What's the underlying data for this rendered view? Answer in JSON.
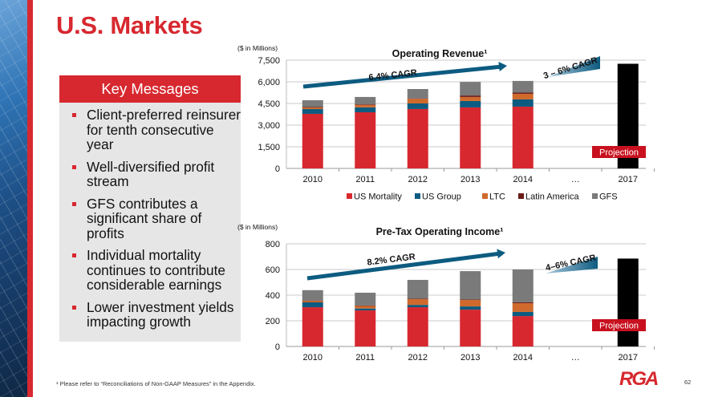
{
  "slide": {
    "title": "U.S. Markets",
    "key_messages": {
      "header": "Key Messages",
      "items": [
        "Client-preferred reinsurer for tenth consecutive year",
        "Well-diversified profit stream",
        "GFS contributes a significant share of profits",
        "Individual mortality continues to contribute considerable earnings",
        "Lower investment yields impacting growth"
      ]
    },
    "footnote": "¹ Please refer to “Reconciliations of Non-GAAP Measures” in the Appendix.",
    "logo": "RGA",
    "page_number": "62"
  },
  "colors": {
    "brand_red": "#d7282f",
    "US Mortality": "#d7282f",
    "US Group": "#0d5b80",
    "LTC": "#cf6a2c",
    "Latin America": "#6a1c18",
    "GFS": "#7a7a7a",
    "projection": "#000000",
    "cagr_arrow": "#0d5b80"
  },
  "chart_data": [
    {
      "type": "bar",
      "stacked": true,
      "title": "Operating Revenue¹",
      "units_label": "($ in Millions)",
      "xlabel": "",
      "ylabel": "",
      "categories": [
        "2010",
        "2011",
        "2012",
        "2013",
        "2014",
        "…",
        "2017"
      ],
      "ylim": [
        0,
        7500
      ],
      "yticks": [
        0,
        1500,
        3000,
        4500,
        6000,
        7500
      ],
      "ytick_labels": [
        "0",
        "1,500",
        "3,000",
        "4,500",
        "6,000",
        "7,500"
      ],
      "grid": true,
      "legend": "bottom",
      "series": [
        {
          "name": "US Mortality",
          "values": [
            3780,
            3890,
            4115,
            4225,
            4280,
            null,
            null
          ]
        },
        {
          "name": "US Group",
          "values": [
            330,
            340,
            385,
            445,
            500,
            null,
            null
          ]
        },
        {
          "name": "LTC",
          "values": [
            110,
            170,
            320,
            280,
            390,
            null,
            null
          ]
        },
        {
          "name": "Latin America",
          "values": [
            30,
            40,
            30,
            100,
            80,
            null,
            null
          ]
        },
        {
          "name": "GFS",
          "values": [
            475,
            510,
            650,
            940,
            810,
            null,
            null
          ]
        }
      ],
      "projection": {
        "category": "2017",
        "value": 7250,
        "label": "Projection"
      },
      "annotations": [
        {
          "text": "6.4% CAGR",
          "kind": "historical-arrow"
        },
        {
          "text": "3 – 6% CAGR",
          "kind": "projected-wedge"
        }
      ]
    },
    {
      "type": "bar",
      "stacked": true,
      "title": "Pre-Tax Operating Income¹",
      "units_label": "($ in Millions)",
      "xlabel": "",
      "ylabel": "",
      "categories": [
        "2010",
        "2011",
        "2012",
        "2013",
        "2014",
        "…",
        "2017"
      ],
      "ylim": [
        0,
        800
      ],
      "yticks": [
        0,
        200,
        400,
        600,
        800
      ],
      "ytick_labels": [
        "0",
        "200",
        "400",
        "600",
        "800"
      ],
      "grid": true,
      "legend": "none",
      "series": [
        {
          "name": "US Mortality",
          "values": [
            306,
            281,
            306,
            287,
            237,
            null,
            null
          ]
        },
        {
          "name": "US Group",
          "values": [
            38,
            15,
            18,
            25,
            32,
            null,
            null
          ]
        },
        {
          "name": "LTC",
          "values": [
            12,
            20,
            44,
            50,
            68,
            null,
            null
          ]
        },
        {
          "name": "Latin America",
          "values": [
            2,
            4,
            5,
            5,
            8,
            null,
            null
          ]
        },
        {
          "name": "GFS",
          "values": [
            81,
            99,
            146,
            220,
            255,
            null,
            null
          ]
        }
      ],
      "projection": {
        "category": "2017",
        "value": 685,
        "label": "Projection"
      },
      "annotations": [
        {
          "text": "8.2% CAGR",
          "kind": "historical-arrow"
        },
        {
          "text": "4–6% CAGR",
          "kind": "projected-wedge"
        }
      ]
    }
  ]
}
